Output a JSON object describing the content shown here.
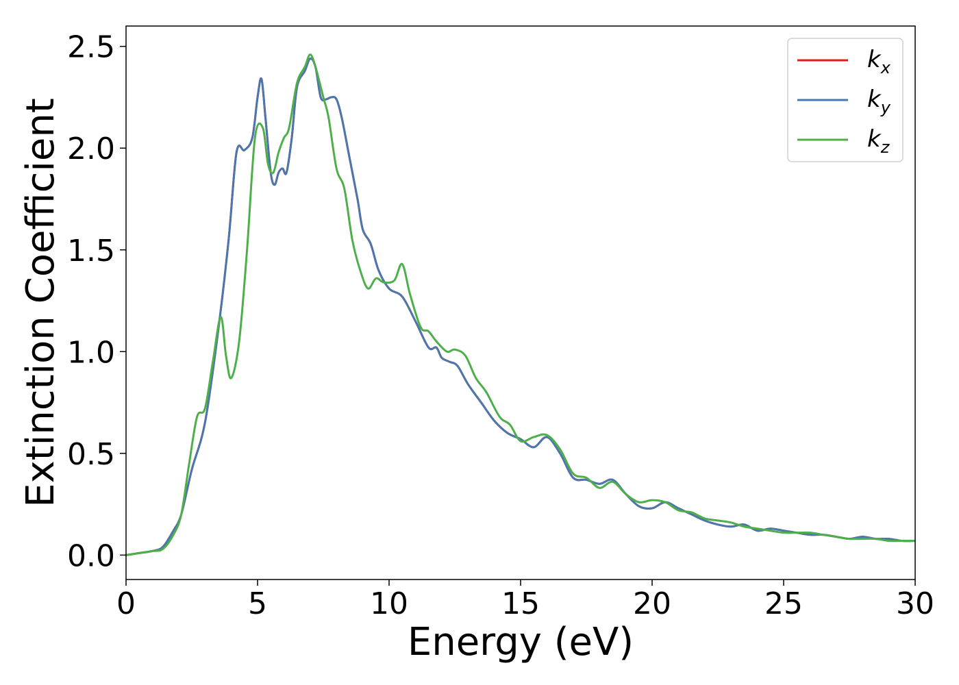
{
  "chart_data": {
    "type": "line",
    "title": "",
    "xlabel": "Energy (eV)",
    "ylabel": "Extinction Coefficient",
    "xlim": [
      0,
      30
    ],
    "ylim": [
      -0.12,
      2.6
    ],
    "xticks": [
      0,
      5,
      10,
      15,
      20,
      25,
      30
    ],
    "xtick_labels": [
      "0",
      "5",
      "10",
      "15",
      "20",
      "25",
      "30"
    ],
    "yticks": [
      0.0,
      0.5,
      1.0,
      1.5,
      2.0,
      2.5
    ],
    "ytick_labels": [
      "0.0",
      "0.5",
      "1.0",
      "1.5",
      "2.0",
      "2.5"
    ],
    "grid": false,
    "legend_position": "top-right",
    "series": [
      {
        "name": "k_x",
        "label_base": "k",
        "label_sub": "x",
        "color": "#e41a1c",
        "x": [
          0,
          0.5,
          1.0,
          1.4,
          1.8,
          2.1,
          2.5,
          3.0,
          3.5,
          3.9,
          4.2,
          4.5,
          4.8,
          5.0,
          5.15,
          5.3,
          5.5,
          5.65,
          5.8,
          5.95,
          6.1,
          6.3,
          6.5,
          6.8,
          7.0,
          7.2,
          7.4,
          7.6,
          7.8,
          8.0,
          8.2,
          8.5,
          8.8,
          9.0,
          9.3,
          9.6,
          10.0,
          10.5,
          11.0,
          11.5,
          11.8,
          12.0,
          12.3,
          12.6,
          13.0,
          13.5,
          14.0,
          14.5,
          15.0,
          15.5,
          16.0,
          16.5,
          17.0,
          17.5,
          18.0,
          18.5,
          19.0,
          19.5,
          20.0,
          20.5,
          21.0,
          21.5,
          22.0,
          22.5,
          23.0,
          23.5,
          24.0,
          24.5,
          25.0,
          25.5,
          26.0,
          26.5,
          27.0,
          27.5,
          28.0,
          28.5,
          29.0,
          29.5,
          30.0
        ],
        "y": [
          0.0,
          0.01,
          0.02,
          0.04,
          0.12,
          0.2,
          0.42,
          0.65,
          1.1,
          1.55,
          1.98,
          1.99,
          2.05,
          2.25,
          2.34,
          2.15,
          1.88,
          1.82,
          1.88,
          1.9,
          1.88,
          2.05,
          2.3,
          2.38,
          2.44,
          2.4,
          2.25,
          2.24,
          2.25,
          2.24,
          2.15,
          1.95,
          1.75,
          1.6,
          1.53,
          1.4,
          1.31,
          1.27,
          1.15,
          1.02,
          1.02,
          0.97,
          0.95,
          0.93,
          0.84,
          0.75,
          0.66,
          0.6,
          0.57,
          0.53,
          0.58,
          0.5,
          0.38,
          0.37,
          0.35,
          0.37,
          0.3,
          0.24,
          0.23,
          0.26,
          0.23,
          0.2,
          0.17,
          0.15,
          0.14,
          0.15,
          0.12,
          0.13,
          0.12,
          0.11,
          0.1,
          0.1,
          0.09,
          0.08,
          0.09,
          0.08,
          0.08,
          0.07,
          0.07
        ]
      },
      {
        "name": "k_y",
        "label_base": "k",
        "label_sub": "y",
        "color": "#4a78ae",
        "x": [
          0,
          0.5,
          1.0,
          1.4,
          1.8,
          2.1,
          2.5,
          3.0,
          3.5,
          3.9,
          4.2,
          4.5,
          4.8,
          5.0,
          5.15,
          5.3,
          5.5,
          5.65,
          5.8,
          5.95,
          6.1,
          6.3,
          6.5,
          6.8,
          7.0,
          7.2,
          7.4,
          7.6,
          7.8,
          8.0,
          8.2,
          8.5,
          8.8,
          9.0,
          9.3,
          9.6,
          10.0,
          10.5,
          11.0,
          11.5,
          11.8,
          12.0,
          12.3,
          12.6,
          13.0,
          13.5,
          14.0,
          14.5,
          15.0,
          15.5,
          16.0,
          16.5,
          17.0,
          17.5,
          18.0,
          18.5,
          19.0,
          19.5,
          20.0,
          20.5,
          21.0,
          21.5,
          22.0,
          22.5,
          23.0,
          23.5,
          24.0,
          24.5,
          25.0,
          25.5,
          26.0,
          26.5,
          27.0,
          27.5,
          28.0,
          28.5,
          29.0,
          29.5,
          30.0
        ],
        "y": [
          0.0,
          0.01,
          0.02,
          0.04,
          0.12,
          0.2,
          0.42,
          0.65,
          1.1,
          1.55,
          1.98,
          1.99,
          2.05,
          2.25,
          2.34,
          2.15,
          1.88,
          1.82,
          1.88,
          1.9,
          1.88,
          2.05,
          2.3,
          2.38,
          2.44,
          2.4,
          2.25,
          2.24,
          2.25,
          2.24,
          2.15,
          1.95,
          1.75,
          1.6,
          1.53,
          1.4,
          1.31,
          1.27,
          1.15,
          1.02,
          1.02,
          0.97,
          0.95,
          0.93,
          0.84,
          0.75,
          0.66,
          0.6,
          0.57,
          0.53,
          0.58,
          0.5,
          0.38,
          0.37,
          0.35,
          0.37,
          0.3,
          0.24,
          0.23,
          0.26,
          0.23,
          0.2,
          0.17,
          0.15,
          0.14,
          0.15,
          0.12,
          0.13,
          0.12,
          0.11,
          0.1,
          0.1,
          0.09,
          0.08,
          0.09,
          0.08,
          0.08,
          0.07,
          0.07
        ]
      },
      {
        "name": "k_z",
        "label_base": "k",
        "label_sub": "z",
        "color": "#4daf4a",
        "x": [
          0,
          0.5,
          1.0,
          1.4,
          1.8,
          2.1,
          2.4,
          2.7,
          3.0,
          3.3,
          3.6,
          3.8,
          4.0,
          4.3,
          4.6,
          4.9,
          5.2,
          5.4,
          5.6,
          5.8,
          6.0,
          6.2,
          6.5,
          6.8,
          7.0,
          7.2,
          7.5,
          7.7,
          8.0,
          8.3,
          8.6,
          8.9,
          9.2,
          9.5,
          9.8,
          10.2,
          10.5,
          10.8,
          11.2,
          11.5,
          11.8,
          12.2,
          12.5,
          12.9,
          13.3,
          13.7,
          14.2,
          14.6,
          15.0,
          15.5,
          16.0,
          16.5,
          17.0,
          17.5,
          18.0,
          18.5,
          19.0,
          19.5,
          20.0,
          20.5,
          21.0,
          21.5,
          22.0,
          22.5,
          23.0,
          23.5,
          24.0,
          24.5,
          25.0,
          25.5,
          26.0,
          26.5,
          27.0,
          27.5,
          28.0,
          28.5,
          29.0,
          29.5,
          30.0
        ],
        "y": [
          0.0,
          0.01,
          0.02,
          0.03,
          0.1,
          0.2,
          0.45,
          0.68,
          0.72,
          0.95,
          1.17,
          0.98,
          0.87,
          1.05,
          1.5,
          2.05,
          2.1,
          1.92,
          1.88,
          1.98,
          2.05,
          2.1,
          2.32,
          2.4,
          2.46,
          2.4,
          2.25,
          2.15,
          1.9,
          1.8,
          1.55,
          1.4,
          1.31,
          1.36,
          1.34,
          1.35,
          1.43,
          1.28,
          1.12,
          1.1,
          1.05,
          1.0,
          1.01,
          0.98,
          0.87,
          0.8,
          0.68,
          0.64,
          0.56,
          0.58,
          0.59,
          0.52,
          0.4,
          0.38,
          0.33,
          0.36,
          0.3,
          0.26,
          0.27,
          0.26,
          0.22,
          0.21,
          0.18,
          0.17,
          0.16,
          0.14,
          0.13,
          0.12,
          0.11,
          0.11,
          0.11,
          0.1,
          0.09,
          0.08,
          0.08,
          0.08,
          0.07,
          0.07,
          0.07
        ]
      }
    ]
  }
}
